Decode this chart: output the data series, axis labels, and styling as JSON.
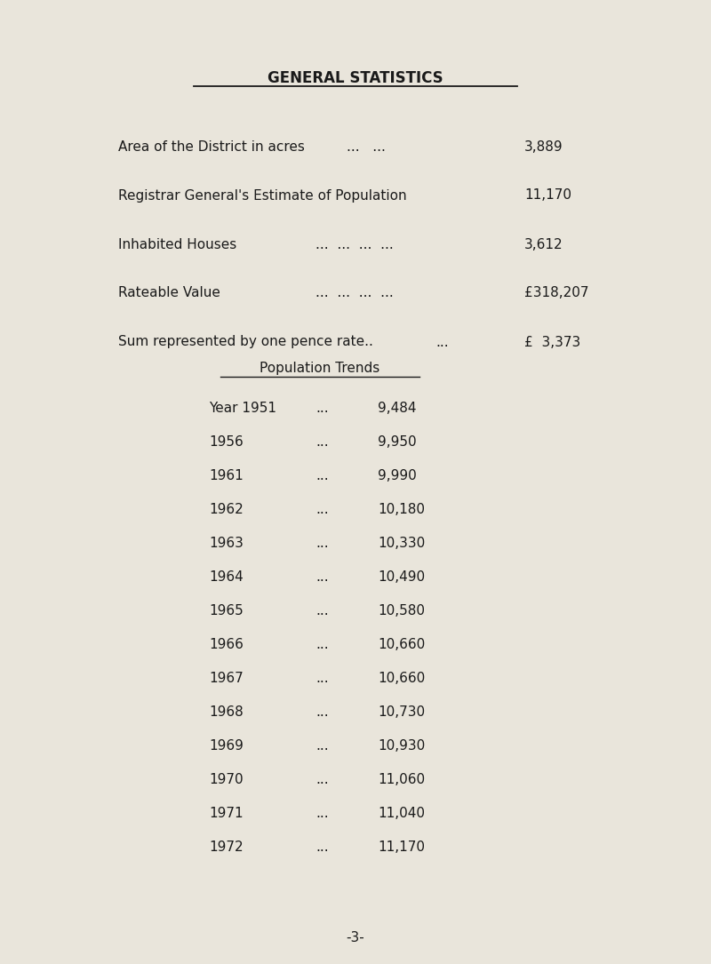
{
  "background_color": "#e9e5db",
  "title": "GENERAL STATISTICS",
  "title_fontsize": 12,
  "font_family": "Courier New",
  "stats": [
    {
      "label": "Area of the District in acres",
      "dots": "...   ...",
      "value": "3,889"
    },
    {
      "label": "Registrar General's Estimate of Population",
      "dots": "",
      "value": "11,170"
    },
    {
      "label": "Inhabited Houses",
      "dots": "...  ...  ...  ...",
      "value": "3,612"
    },
    {
      "label": "Rateable Value",
      "dots": "...  ...  ...  ...",
      "value": "£318,207"
    },
    {
      "label": "Sum represented by one pence rate..",
      "dots": "...",
      "value": "£  3,373"
    }
  ],
  "section_title": "Population Trends",
  "pop_trends": [
    {
      "year": "Year 1951",
      "dots": "...",
      "value": "9,484"
    },
    {
      "year": "1956",
      "dots": "...",
      "value": "9,950"
    },
    {
      "year": "1961",
      "dots": "...",
      "value": "9,990"
    },
    {
      "year": "1962",
      "dots": "...",
      "value": "10,180"
    },
    {
      "year": "1963",
      "dots": "...",
      "value": "10,330"
    },
    {
      "year": "1964",
      "dots": "...",
      "value": "10,490"
    },
    {
      "year": "1965",
      "dots": "...",
      "value": "10,580"
    },
    {
      "year": "1966",
      "dots": "...",
      "value": "10,660"
    },
    {
      "year": "1967",
      "dots": "...",
      "value": "10,660"
    },
    {
      "year": "1968",
      "dots": "...",
      "value": "10,730"
    },
    {
      "year": "1969",
      "dots": "...",
      "value": "10,930"
    },
    {
      "year": "1970",
      "dots": "...",
      "value": "11,060"
    },
    {
      "year": "1971",
      "dots": "...",
      "value": "11,040"
    },
    {
      "year": "1972",
      "dots": "...",
      "value": "11,170"
    }
  ],
  "page_num": "-3-",
  "text_color": "#1a1a1a",
  "fontsize_main": 11,
  "fontsize_pop": 11
}
